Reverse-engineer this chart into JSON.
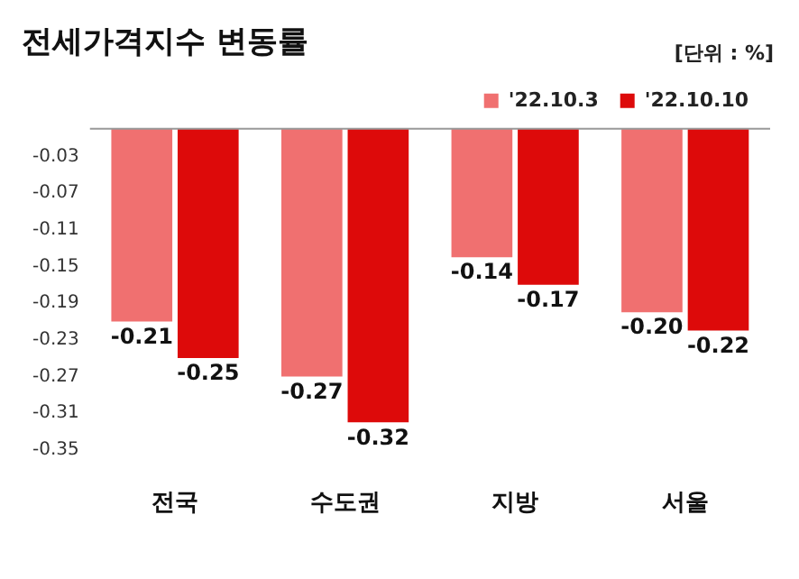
{
  "chart_data": {
    "type": "bar",
    "title": "전세가격지수 변동률",
    "annotations": [
      "[단위 : %]"
    ],
    "categories": [
      "전국",
      "수도권",
      "지방",
      "서울"
    ],
    "series": [
      {
        "name": "'22.10.3",
        "color": "#f07070",
        "values": [
          -0.21,
          -0.27,
          -0.14,
          -0.2
        ],
        "value_labels": [
          "-0.21",
          "-0.27",
          "-0.14",
          "-0.20"
        ]
      },
      {
        "name": "'22.10.10",
        "color": "#dd0a0a",
        "values": [
          -0.25,
          -0.32,
          -0.17,
          -0.22
        ],
        "value_labels": [
          "-0.25",
          "-0.32",
          "-0.17",
          "-0.22"
        ]
      }
    ],
    "ylim": [
      -0.35,
      0
    ],
    "yticks": [
      -0.03,
      -0.07,
      -0.11,
      -0.15,
      -0.19,
      -0.23,
      -0.27,
      -0.31,
      -0.35
    ],
    "legend": "top right",
    "grid": false
  }
}
